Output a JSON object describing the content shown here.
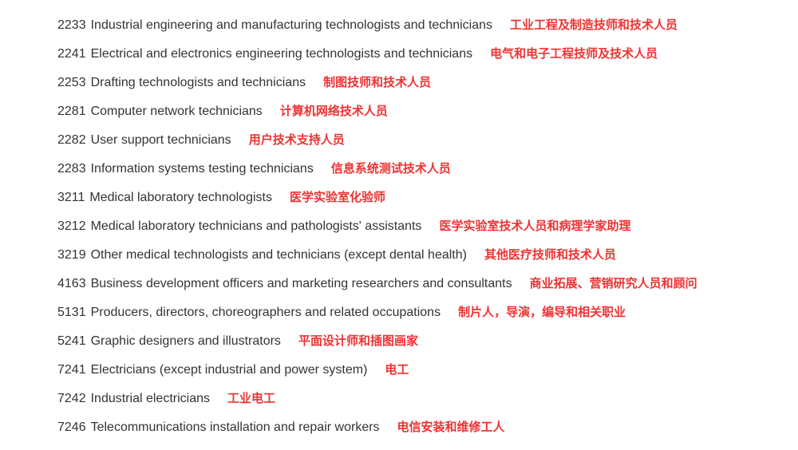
{
  "colors": {
    "text_primary": "#333333",
    "text_accent": "#ee3333",
    "background": "#ffffff"
  },
  "typography": {
    "primary_fontsize": 16,
    "accent_fontsize": 15,
    "accent_weight": "bold"
  },
  "items": [
    {
      "code": "2233",
      "en": "Industrial engineering and manufacturing technologists and technicians",
      "zh": "工业工程及制造技师和技术人员"
    },
    {
      "code": "2241",
      "en": "Electrical and electronics engineering technologists and technicians",
      "zh": "电气和电子工程技师及技术人员"
    },
    {
      "code": "2253",
      "en": "Drafting technologists and technicians",
      "zh": "制图技师和技术人员"
    },
    {
      "code": "2281",
      "en": "Computer network technicians",
      "zh": "计算机网络技术人员"
    },
    {
      "code": "2282",
      "en": "User support technicians",
      "zh": "用户技术支持人员"
    },
    {
      "code": "2283",
      "en": "Information systems testing technicians",
      "zh": "信息系统测试技术人员"
    },
    {
      "code": "3211",
      "en": "Medical laboratory technologists",
      "zh": "医学实验室化验师"
    },
    {
      "code": "3212",
      "en": "Medical laboratory technicians and pathologists' assistants",
      "zh": "医学实验室技术人员和病理学家助理"
    },
    {
      "code": "3219",
      "en": "Other medical technologists and technicians (except dental health)",
      "zh": "其他医疗技师和技术人员"
    },
    {
      "code": "4163",
      "en": "Business development officers and marketing researchers and consultants",
      "zh": "商业拓展、营销研究人员和顾问"
    },
    {
      "code": "5131",
      "en": "Producers, directors, choreographers and related occupations",
      "zh": "制片人，导演，编导和相关职业"
    },
    {
      "code": "5241",
      "en": "Graphic designers and illustrators",
      "zh": "平面设计师和插图画家"
    },
    {
      "code": "7241",
      "en": "Electricians (except industrial and power system)",
      "zh": "电工"
    },
    {
      "code": "7242",
      "en": "Industrial electricians",
      "zh": "工业电工"
    },
    {
      "code": "7246",
      "en": "Telecommunications installation and repair workers",
      "zh": "电信安装和维修工人"
    }
  ]
}
